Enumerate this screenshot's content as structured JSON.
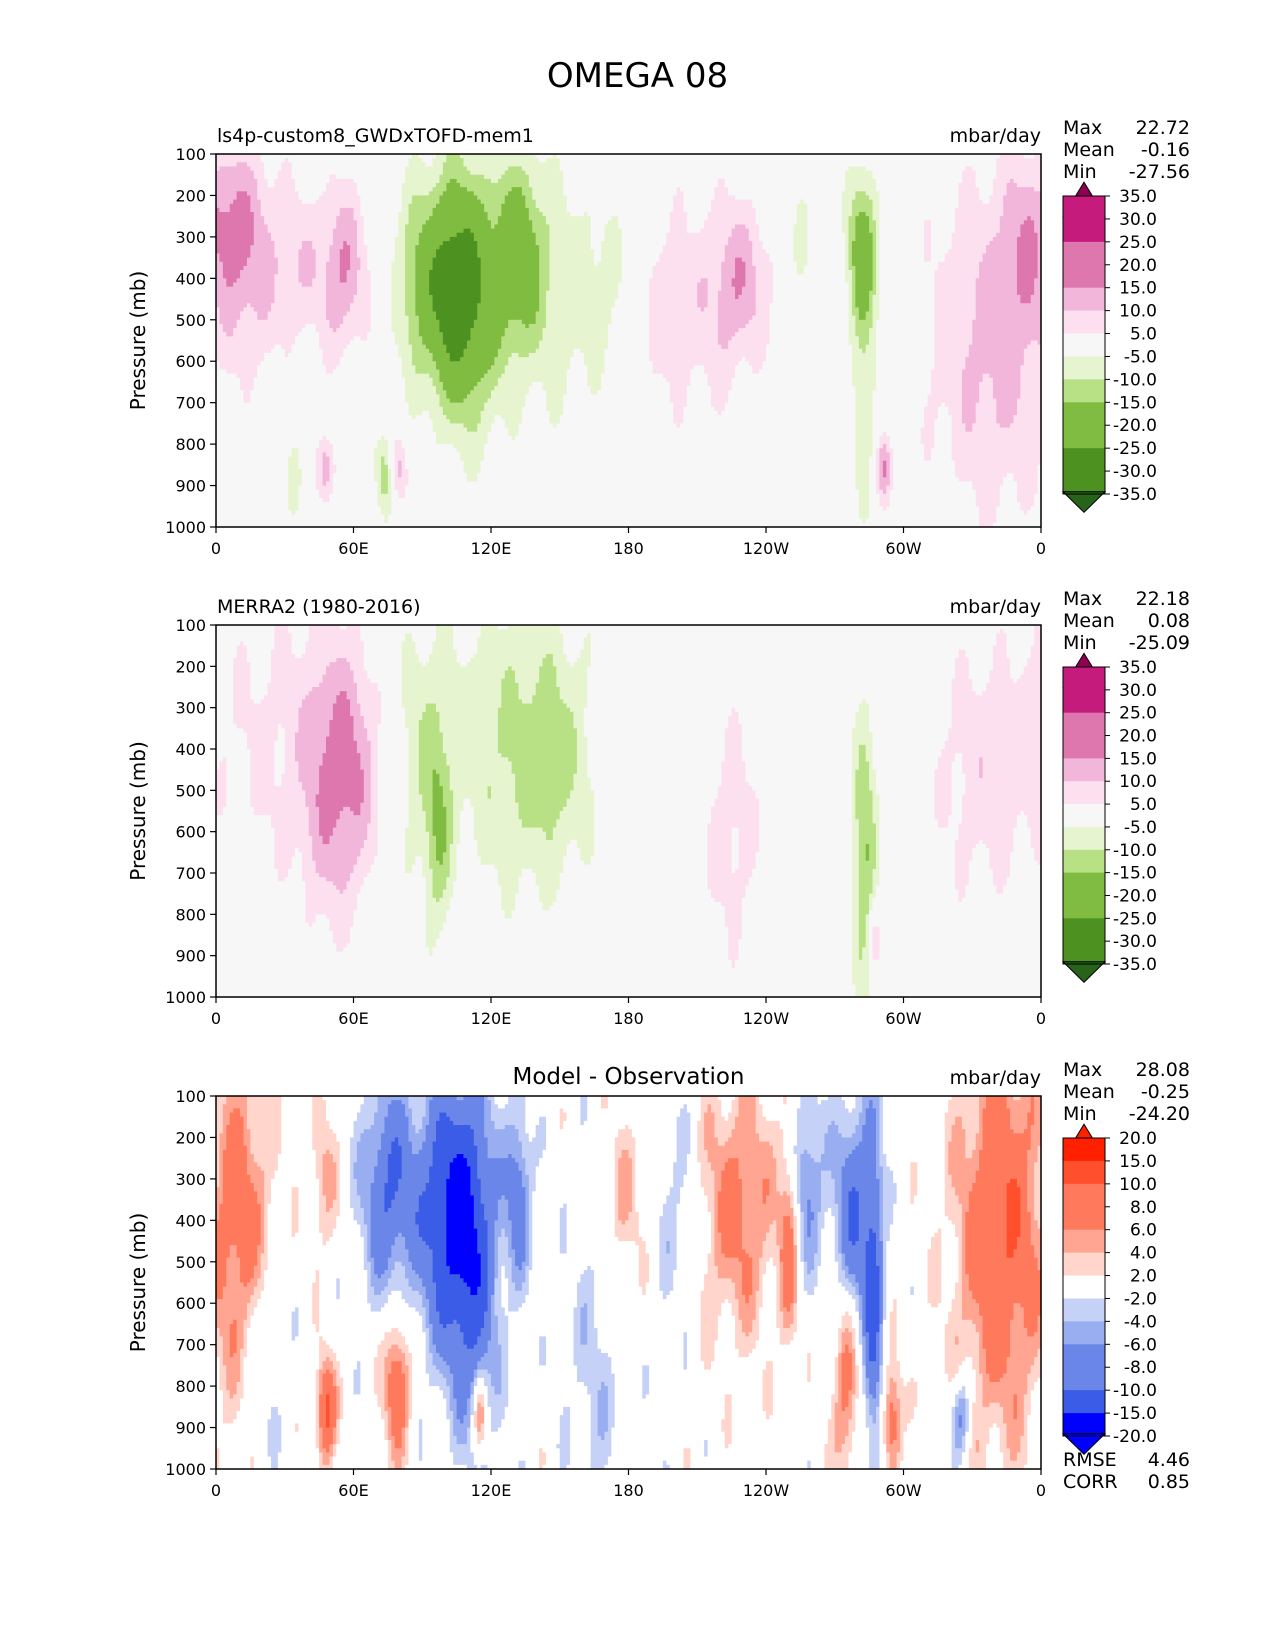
{
  "figure_title": "OMEGA 08",
  "colors": {
    "seq_levels": [
      "#276419",
      "#4d9221",
      "#7fbc41",
      "#b8e186",
      "#e6f5d0",
      "#f7f7f7",
      "#fde0ef",
      "#f1b6da",
      "#de77ae",
      "#c51b7d",
      "#8e0152"
    ],
    "div_levels": [
      "#0000ff",
      "#3b5ce6",
      "#6a86e8",
      "#98aef0",
      "#c5d1f7",
      "#ffffff",
      "#ffd5cc",
      "#ffa591",
      "#ff7a5c",
      "#ff4f2d",
      "#ff2000"
    ]
  },
  "chart_data": [
    {
      "type": "heatmap",
      "name": "model",
      "subtitle": "ls4p-custom8_GWDxTOFD-mem1",
      "title": "",
      "units": "mbar/day",
      "ylabel": "Pressure (mb)",
      "xlabel": "",
      "x_ticks": [
        "0",
        "60E",
        "120E",
        "180",
        "120W",
        "60W",
        "0"
      ],
      "x_tick_values": [
        0,
        60,
        120,
        180,
        240,
        300,
        360
      ],
      "y_ticks": [
        "100",
        "200",
        "300",
        "400",
        "500",
        "600",
        "700",
        "800",
        "900",
        "1000"
      ],
      "y_tick_values": [
        100,
        200,
        300,
        400,
        500,
        600,
        700,
        800,
        900,
        1000
      ],
      "xlim": [
        0,
        360
      ],
      "ylim": [
        1000,
        100
      ],
      "stats": [
        {
          "label": "Max",
          "value": "22.72"
        },
        {
          "label": "Mean",
          "value": "-0.16"
        },
        {
          "label": "Min",
          "value": "-27.56"
        }
      ],
      "colorbar_labels": [
        "35.0",
        "30.0",
        "25.0",
        "20.0",
        "15.0",
        "10.0",
        "5.0",
        "-5.0",
        "-10.0",
        "-15.0",
        "-20.0",
        "-25.0",
        "-30.0",
        "-35.0"
      ],
      "colormap": "seq",
      "features": [
        {
          "lon": 12,
          "p": 360,
          "slon": 14,
          "sp": 200,
          "amp": 13
        },
        {
          "lon": 2,
          "p": 250,
          "slon": 10,
          "sp": 120,
          "amp": 8
        },
        {
          "lon": 55,
          "p": 380,
          "slon": 8,
          "sp": 150,
          "amp": 15
        },
        {
          "lon": 36,
          "p": 370,
          "slon": 6,
          "sp": 120,
          "amp": 6
        },
        {
          "lon": 85,
          "p": 400,
          "slon": 6,
          "sp": 170,
          "amp": -8
        },
        {
          "lon": 101,
          "p": 420,
          "slon": 10,
          "sp": 190,
          "amp": -23
        },
        {
          "lon": 112,
          "p": 460,
          "slon": 10,
          "sp": 230,
          "amp": -15
        },
        {
          "lon": 132,
          "p": 340,
          "slon": 8,
          "sp": 160,
          "amp": -17
        },
        {
          "lon": 150,
          "p": 450,
          "slon": 18,
          "sp": 250,
          "amp": -7
        },
        {
          "lon": 172,
          "p": 400,
          "slon": 8,
          "sp": 150,
          "amp": -4
        },
        {
          "lon": 196,
          "p": 470,
          "slon": 12,
          "sp": 220,
          "amp": 7
        },
        {
          "lon": 230,
          "p": 400,
          "slon": 10,
          "sp": 140,
          "amp": 11
        },
        {
          "lon": 220,
          "p": 500,
          "slon": 10,
          "sp": 200,
          "amp": 5
        },
        {
          "lon": 255,
          "p": 350,
          "slon": 5,
          "sp": 130,
          "amp": -6
        },
        {
          "lon": 282,
          "p": 330,
          "slon": 5,
          "sp": 140,
          "amp": -19
        },
        {
          "lon": 283,
          "p": 700,
          "slon": 4,
          "sp": 220,
          "amp": -9
        },
        {
          "lon": 340,
          "p": 560,
          "slon": 22,
          "sp": 300,
          "amp": 12
        },
        {
          "lon": 355,
          "p": 300,
          "slon": 8,
          "sp": 150,
          "amp": 9
        },
        {
          "lon": 48,
          "p": 860,
          "slon": 3,
          "sp": 60,
          "amp": 14
        },
        {
          "lon": 79,
          "p": 860,
          "slon": 3,
          "sp": 60,
          "amp": 14
        },
        {
          "lon": 74,
          "p": 870,
          "slon": 3,
          "sp": 70,
          "amp": -15
        },
        {
          "lon": 291,
          "p": 860,
          "slon": 2.5,
          "sp": 60,
          "amp": 14
        },
        {
          "lon": 35,
          "p": 880,
          "slon": 3,
          "sp": 90,
          "amp": -7
        },
        {
          "lon": 20,
          "p": 880,
          "slon": 3,
          "sp": 80,
          "amp": -5
        }
      ]
    },
    {
      "type": "heatmap",
      "name": "observation",
      "subtitle": "MERRA2 (1980-2016)",
      "title": "",
      "units": "mbar/day",
      "ylabel": "Pressure (mb)",
      "xlabel": "",
      "x_ticks": [
        "0",
        "60E",
        "120E",
        "180",
        "120W",
        "60W",
        "0"
      ],
      "x_tick_values": [
        0,
        60,
        120,
        180,
        240,
        300,
        360
      ],
      "y_ticks": [
        "100",
        "200",
        "300",
        "400",
        "500",
        "600",
        "700",
        "800",
        "900",
        "1000"
      ],
      "y_tick_values": [
        100,
        200,
        300,
        400,
        500,
        600,
        700,
        800,
        900,
        1000
      ],
      "xlim": [
        0,
        360
      ],
      "ylim": [
        1000,
        100
      ],
      "stats": [
        {
          "label": "Max",
          "value": "22.18"
        },
        {
          "label": "Mean",
          "value": "0.08"
        },
        {
          "label": "Min",
          "value": "-25.09"
        }
      ],
      "colorbar_labels": [
        "35.0",
        "30.0",
        "25.0",
        "20.0",
        "15.0",
        "10.0",
        "5.0",
        "-5.0",
        "-10.0",
        "-15.0",
        "-20.0",
        "-25.0",
        "-30.0",
        "-35.0"
      ],
      "colormap": "seq",
      "features": [
        {
          "lon": 58,
          "p": 460,
          "slon": 10,
          "sp": 220,
          "amp": 14
        },
        {
          "lon": 25,
          "p": 380,
          "slon": 25,
          "sp": 280,
          "amp": 6
        },
        {
          "lon": 45,
          "p": 520,
          "slon": 8,
          "sp": 300,
          "amp": 5
        },
        {
          "lon": 90,
          "p": 400,
          "slon": 10,
          "sp": 250,
          "amp": -8
        },
        {
          "lon": 97,
          "p": 620,
          "slon": 4,
          "sp": 180,
          "amp": -10
        },
        {
          "lon": 130,
          "p": 400,
          "slon": 20,
          "sp": 260,
          "amp": -10
        },
        {
          "lon": 150,
          "p": 420,
          "slon": 12,
          "sp": 220,
          "amp": -6
        },
        {
          "lon": 225,
          "p": 600,
          "slon": 10,
          "sp": 250,
          "amp": 7
        },
        {
          "lon": 283,
          "p": 650,
          "slon": 4,
          "sp": 240,
          "amp": -16
        },
        {
          "lon": 336,
          "p": 450,
          "slon": 18,
          "sp": 250,
          "amp": 8
        },
        {
          "lon": 360,
          "p": 350,
          "slon": 6,
          "sp": 200,
          "amp": 6
        },
        {
          "lon": 287,
          "p": 860,
          "slon": 2,
          "sp": 60,
          "amp": 12
        },
        {
          "lon": 35,
          "p": 860,
          "slon": 2.5,
          "sp": 70,
          "amp": -6
        }
      ]
    },
    {
      "type": "heatmap",
      "name": "difference",
      "subtitle": "",
      "title": "Model - Observation",
      "units": "mbar/day",
      "ylabel": "Pressure (mb)",
      "xlabel": "",
      "x_ticks": [
        "0",
        "60E",
        "120E",
        "180",
        "120W",
        "60W",
        "0"
      ],
      "x_tick_values": [
        0,
        60,
        120,
        180,
        240,
        300,
        360
      ],
      "y_ticks": [
        "100",
        "200",
        "300",
        "400",
        "500",
        "600",
        "700",
        "800",
        "900",
        "1000"
      ],
      "y_tick_values": [
        100,
        200,
        300,
        400,
        500,
        600,
        700,
        800,
        900,
        1000
      ],
      "xlim": [
        0,
        360
      ],
      "ylim": [
        1000,
        100
      ],
      "stats": [
        {
          "label": "Max",
          "value": "28.08"
        },
        {
          "label": "Mean",
          "value": "-0.25"
        },
        {
          "label": "Min",
          "value": "-24.20"
        }
      ],
      "colorbar_labels": [
        "20.0",
        "15.0",
        "10.0",
        "8.0",
        "6.0",
        "4.0",
        "2.0",
        "-2.0",
        "-4.0",
        "-6.0",
        "-8.0",
        "-10.0",
        "-15.0",
        "-20.0"
      ],
      "colormap": "div",
      "extra_stats": [
        {
          "label": "RMSE",
          "value": "4.46"
        },
        {
          "label": "CORR",
          "value": "0.85"
        }
      ],
      "features": [
        {
          "lon": 10,
          "p": 450,
          "slon": 10,
          "sp": 300,
          "amp": 9
        },
        {
          "lon": 48,
          "p": 860,
          "slon": 3,
          "sp": 90,
          "amp": 11
        },
        {
          "lon": 79,
          "p": 790,
          "slon": 4,
          "sp": 120,
          "amp": 10
        },
        {
          "lon": 75,
          "p": 320,
          "slon": 8,
          "sp": 180,
          "amp": -10
        },
        {
          "lon": 101,
          "p": 380,
          "slon": 10,
          "sp": 220,
          "amp": -13
        },
        {
          "lon": 112,
          "p": 500,
          "slon": 8,
          "sp": 280,
          "amp": -10
        },
        {
          "lon": 132,
          "p": 330,
          "slon": 4,
          "sp": 150,
          "amp": -8
        },
        {
          "lon": 115,
          "p": 870,
          "slon": 2,
          "sp": 60,
          "amp": 8
        },
        {
          "lon": 178,
          "p": 340,
          "slon": 6,
          "sp": 140,
          "amp": 4
        },
        {
          "lon": 165,
          "p": 800,
          "slon": 8,
          "sp": 300,
          "amp": -3
        },
        {
          "lon": 228,
          "p": 370,
          "slon": 12,
          "sp": 220,
          "amp": 7
        },
        {
          "lon": 250,
          "p": 450,
          "slon": 3,
          "sp": 180,
          "amp": 7
        },
        {
          "lon": 258,
          "p": 300,
          "slon": 5,
          "sp": 150,
          "amp": -7
        },
        {
          "lon": 278,
          "p": 400,
          "slon": 6,
          "sp": 200,
          "amp": -10
        },
        {
          "lon": 287,
          "p": 600,
          "slon": 3,
          "sp": 300,
          "amp": -10
        },
        {
          "lon": 295,
          "p": 880,
          "slon": 3,
          "sp": 100,
          "amp": 9
        },
        {
          "lon": 275,
          "p": 780,
          "slon": 4,
          "sp": 180,
          "amp": 8
        },
        {
          "lon": 325,
          "p": 870,
          "slon": 3,
          "sp": 70,
          "amp": -8
        },
        {
          "lon": 343,
          "p": 420,
          "slon": 14,
          "sp": 350,
          "amp": 10
        },
        {
          "lon": 18,
          "p": 720,
          "slon": 8,
          "sp": 200,
          "amp": -4
        },
        {
          "lon": 47,
          "p": 300,
          "slon": 4,
          "sp": 120,
          "amp": 5
        },
        {
          "lon": 200,
          "p": 350,
          "slon": 6,
          "sp": 200,
          "amp": -3
        }
      ]
    }
  ]
}
